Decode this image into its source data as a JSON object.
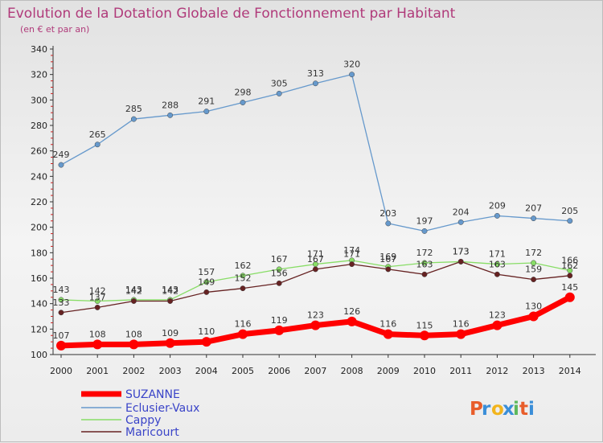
{
  "chart_data": {
    "type": "line",
    "title": "Evolution de la Dotation Globale de Fonctionnement par Habitant",
    "subtitle": "(en € et par an)",
    "x": [
      "2000",
      "2001",
      "2002",
      "2003",
      "2004",
      "2005",
      "2006",
      "2007",
      "2008",
      "2009",
      "2010",
      "2011",
      "2012",
      "2013",
      "2014"
    ],
    "ylim": [
      100,
      340
    ],
    "yticks": [
      100,
      120,
      140,
      160,
      180,
      200,
      220,
      240,
      260,
      280,
      300,
      320,
      340
    ],
    "grid": false,
    "legend_position": "bottom-left",
    "series": [
      {
        "name": "SUZANNE",
        "color": "#ff0000",
        "values": [
          107,
          108,
          108,
          109,
          110,
          116,
          119,
          123,
          126,
          116,
          115,
          116,
          123,
          130,
          145
        ]
      },
      {
        "name": "Eclusier-Vaux",
        "color": "#6699cc",
        "values": [
          249,
          265,
          285,
          288,
          291,
          298,
          305,
          313,
          320,
          203,
          197,
          204,
          209,
          207,
          205
        ]
      },
      {
        "name": "Cappy",
        "color": "#88dd66",
        "values": [
          143,
          142,
          143,
          143,
          157,
          162,
          167,
          171,
          174,
          169,
          172,
          173,
          171,
          172,
          166
        ]
      },
      {
        "name": "Maricourt",
        "color": "#662222",
        "values": [
          133,
          137,
          142,
          142,
          149,
          152,
          156,
          167,
          171,
          167,
          163,
          173,
          163,
          159,
          162
        ]
      }
    ]
  },
  "branding": {
    "logo_text": "Proxiti",
    "logo_colors": [
      "#e85d2a",
      "#3a8ed8",
      "#f2b41c",
      "#3a8ed8",
      "#5cb85c",
      "#e85d2a",
      "#3a8ed8"
    ]
  }
}
